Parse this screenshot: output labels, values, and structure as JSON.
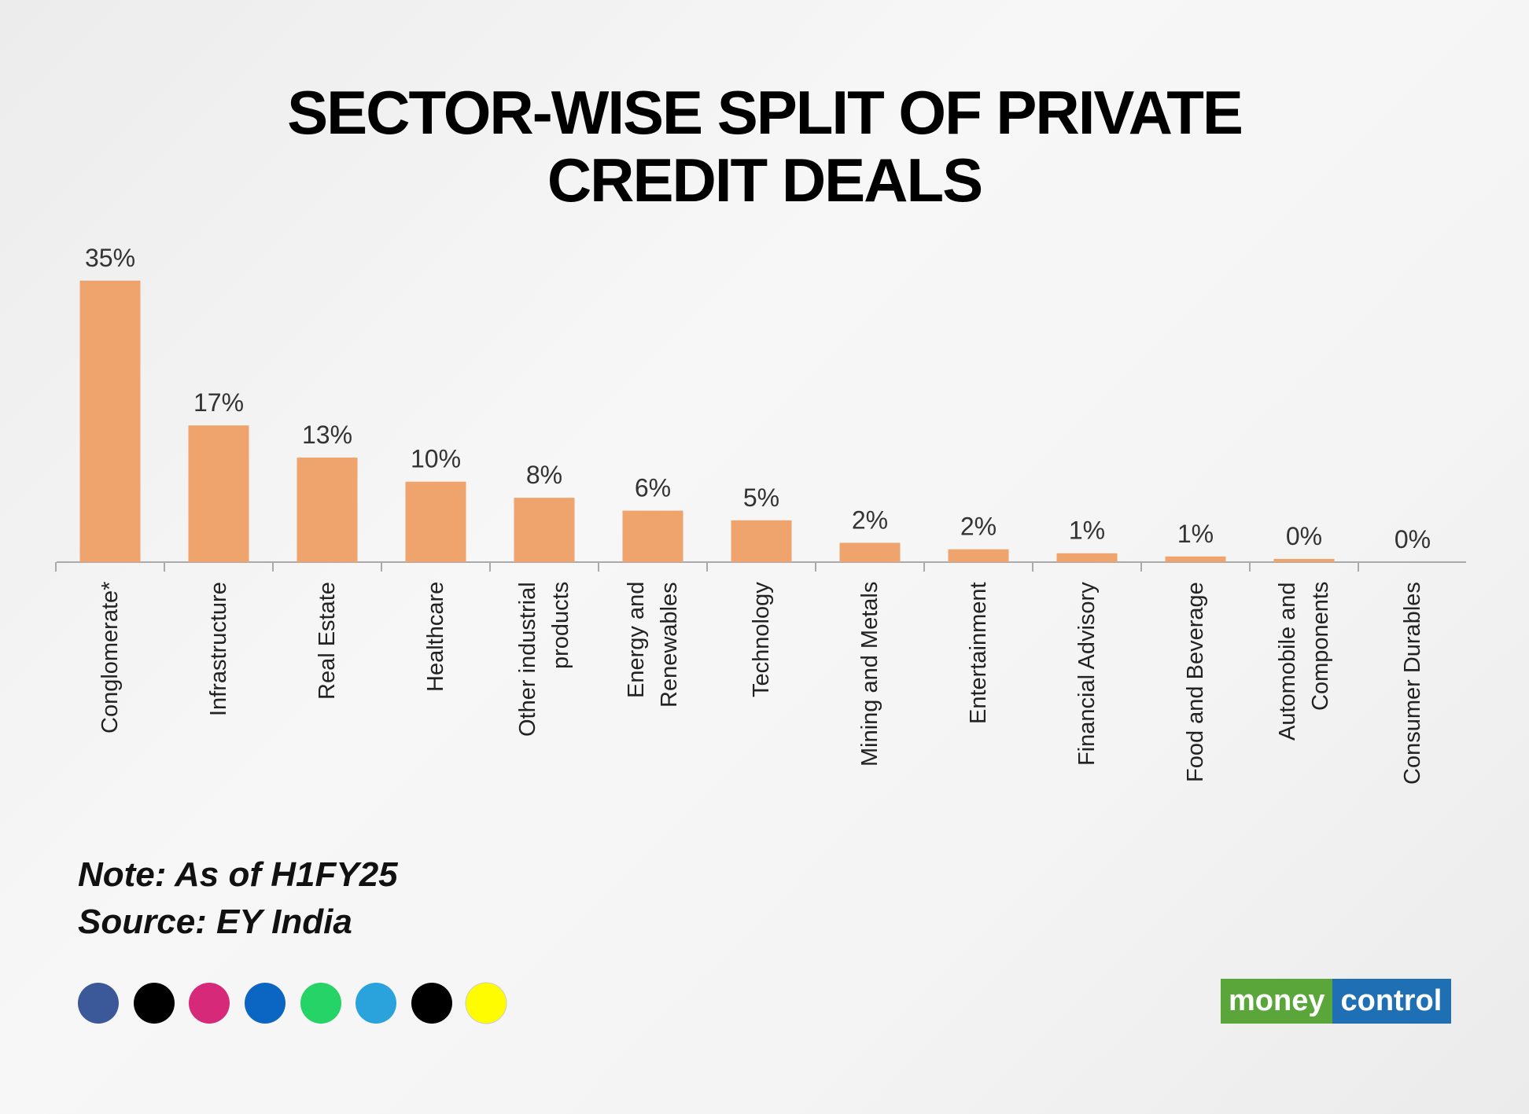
{
  "chart_data": {
    "type": "bar",
    "title": "SECTOR-WISE SPLIT OF PRIVATE CREDIT DEALS",
    "categories": [
      "Conglomerate*",
      "Infrastructure",
      "Real Estate",
      "Healthcare",
      "Other industrial products",
      "Energy and Renewables",
      "Technology",
      "Mining and Metals",
      "Entertainment",
      "Financial Advisory",
      "Food and Beverage",
      "Automobile and Components",
      "Consumer Durables"
    ],
    "values": [
      35,
      17,
      13,
      10,
      8,
      6.4,
      5.2,
      2.4,
      1.6,
      1.1,
      0.7,
      0.4,
      0
    ],
    "value_labels": [
      "35%",
      "17%",
      "13%",
      "10%",
      "8%",
      "6%",
      "5%",
      "2%",
      "2%",
      "1%",
      "1%",
      "0%",
      "0%"
    ],
    "color": "#efa46e",
    "note": "Note: As of H1FY25",
    "source": "Source: EY India"
  },
  "logo": {
    "part1": "money",
    "part2": "control"
  }
}
